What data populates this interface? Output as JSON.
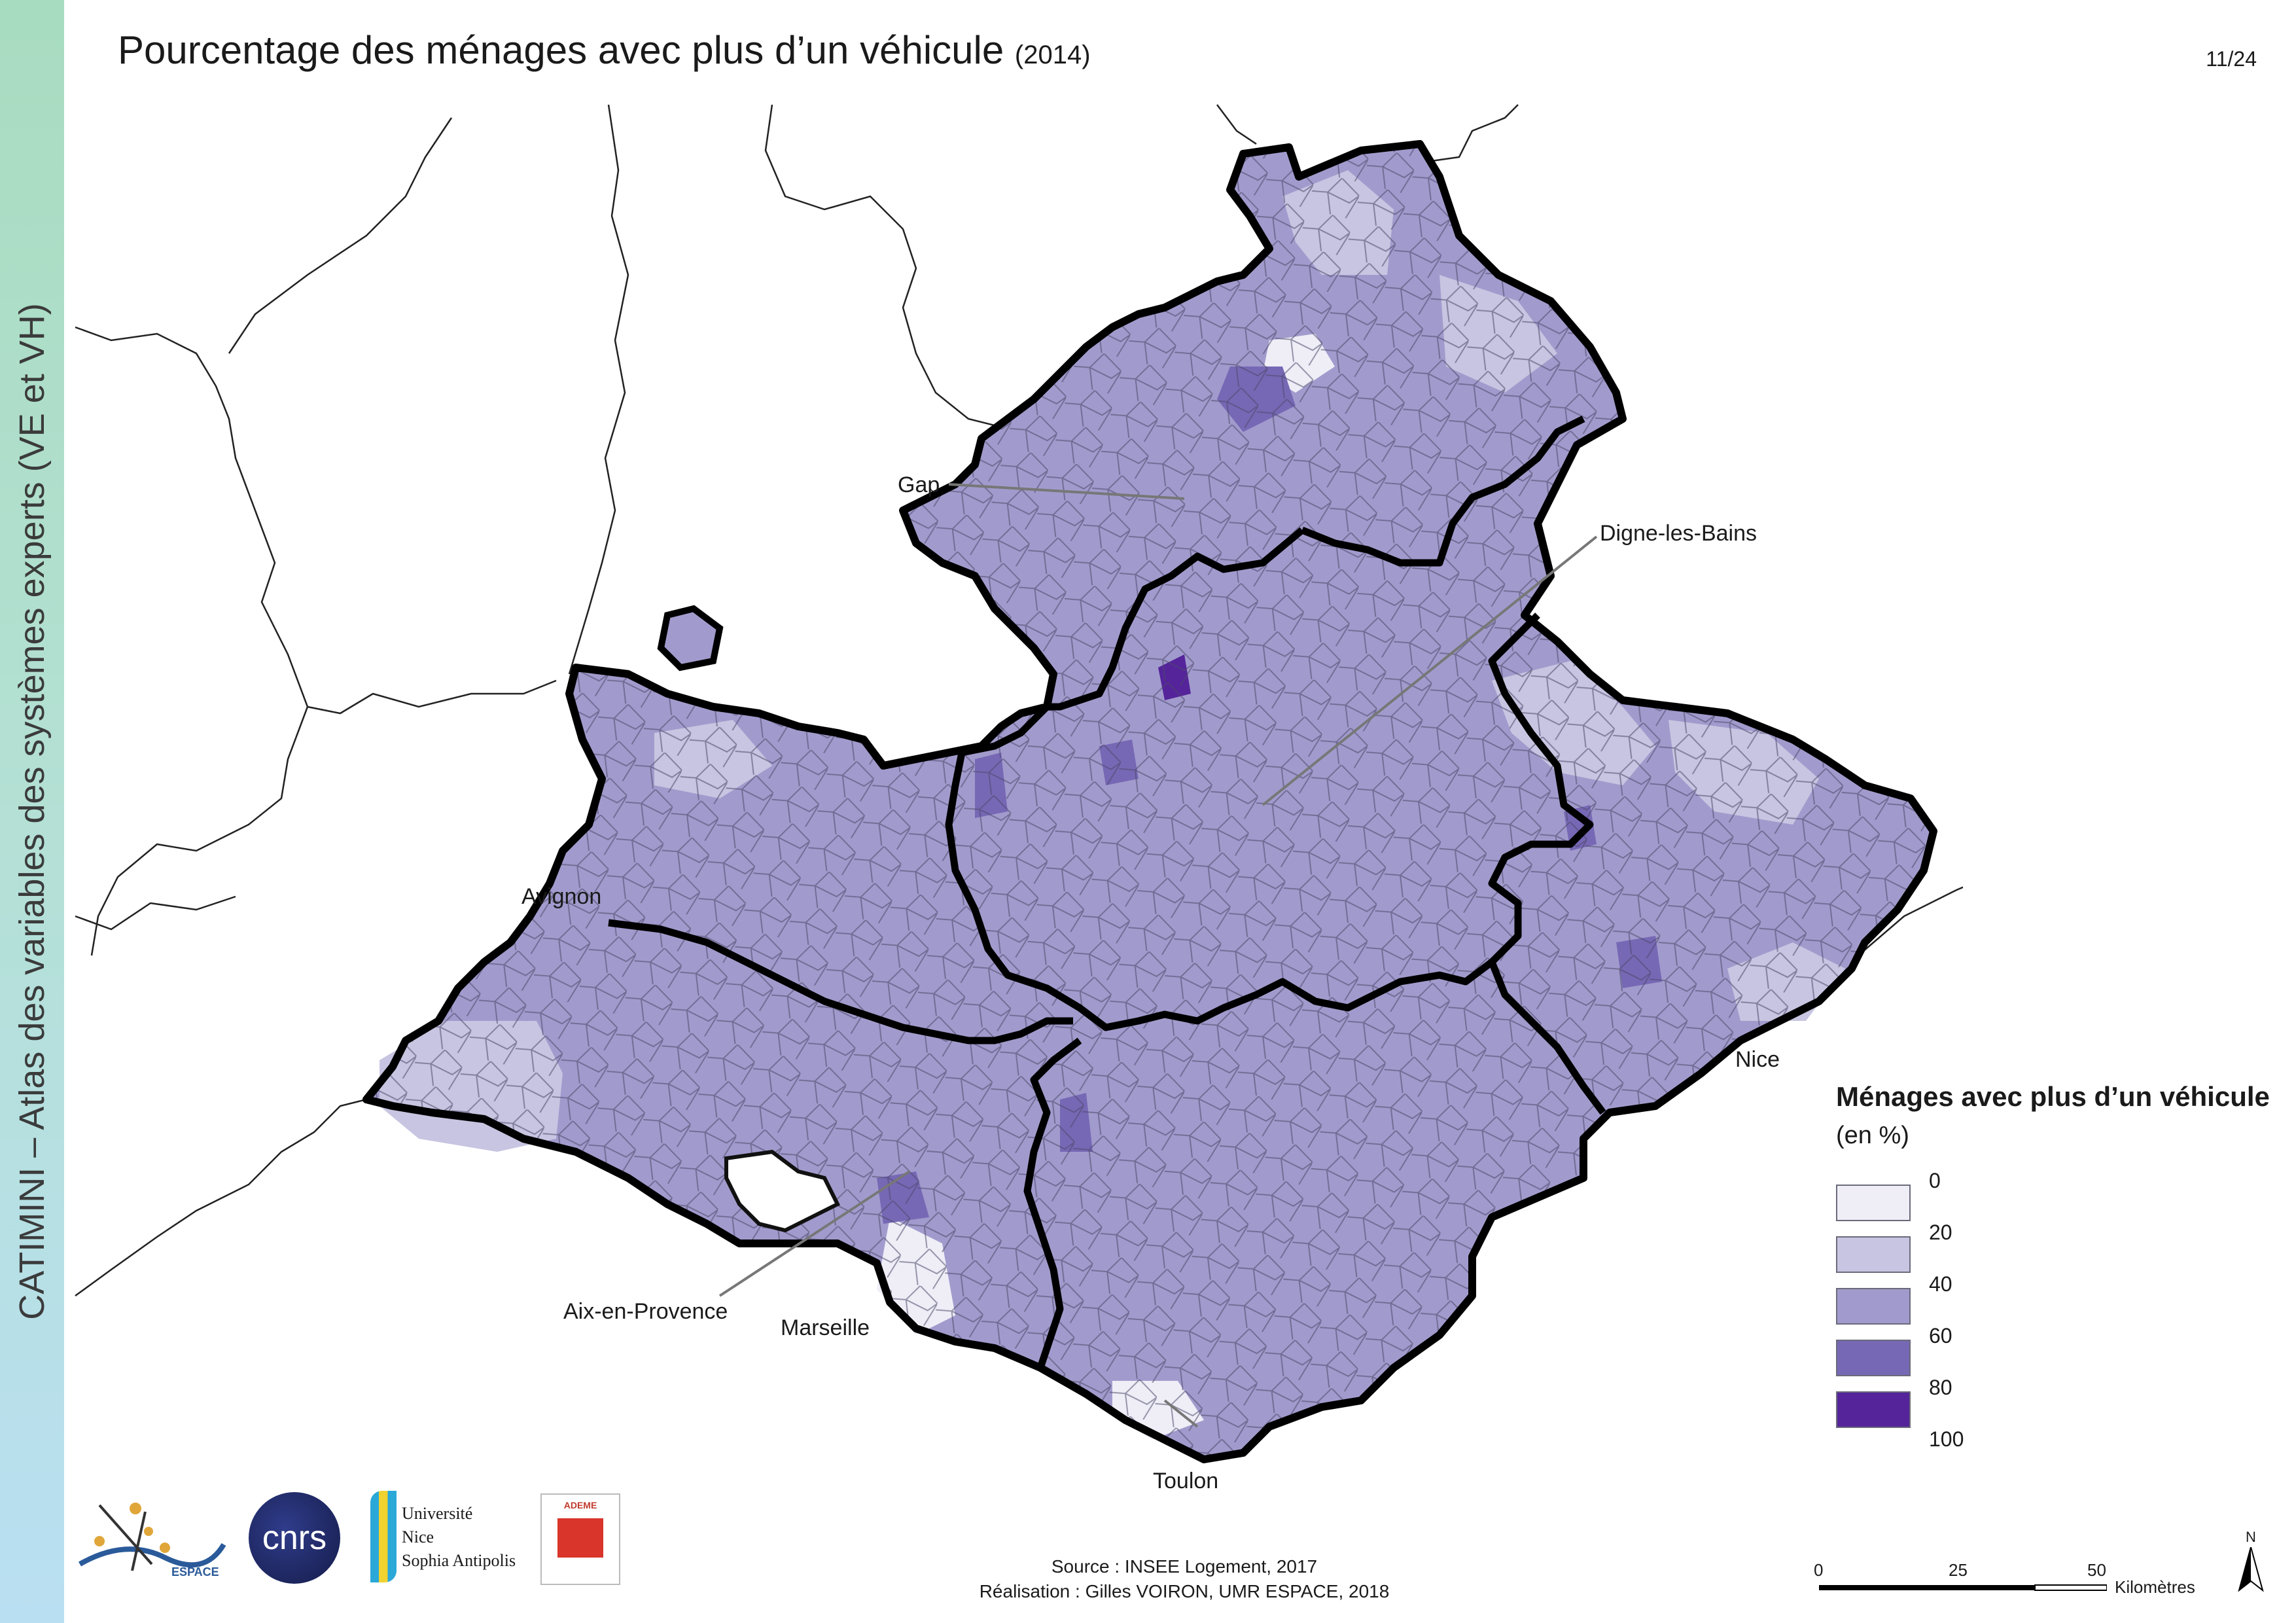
{
  "sidebar": {
    "text": "CATIMINI – Atlas des variables des systèmes experts (VE et VH)"
  },
  "header": {
    "title": "Pourcentage des ménages avec plus d’un véhicule",
    "year": "(2014)",
    "page": "11/24"
  },
  "cities": {
    "gap": "Gap",
    "digne": "Digne-les-Bains",
    "avignon": "Avignon",
    "nice": "Nice",
    "aix": "Aix-en-Provence",
    "marseille": "Marseille",
    "toulon": "Toulon"
  },
  "legend": {
    "title": "Ménages avec plus d’un véhicule",
    "subtitle": "(en %)",
    "classes": [
      {
        "from": 0,
        "to": 20,
        "color": "#efeef7"
      },
      {
        "from": 20,
        "to": 40,
        "color": "#c7c5e1"
      },
      {
        "from": 40,
        "to": 60,
        "color": "#a19bcd"
      },
      {
        "from": 60,
        "to": 80,
        "color": "#7768b5"
      },
      {
        "from": 80,
        "to": 100,
        "color": "#55249a"
      }
    ],
    "ticks": [
      "0",
      "20",
      "40",
      "60",
      "80",
      "100"
    ]
  },
  "source": {
    "line1": "Source : INSEE Logement, 2017",
    "line2": "Réalisation : Gilles VOIRON, UMR ESPACE, 2018"
  },
  "scale": {
    "labels": [
      "0",
      "25",
      "50"
    ],
    "unit": "Kilomètres",
    "north": "N"
  },
  "logos": {
    "espace": "ESPACE",
    "cnrs": "cnrs",
    "unice_1": "Université",
    "unice_2": "Nice",
    "unice_3": "Sophia Antipolis",
    "ademe": "ADEME"
  }
}
